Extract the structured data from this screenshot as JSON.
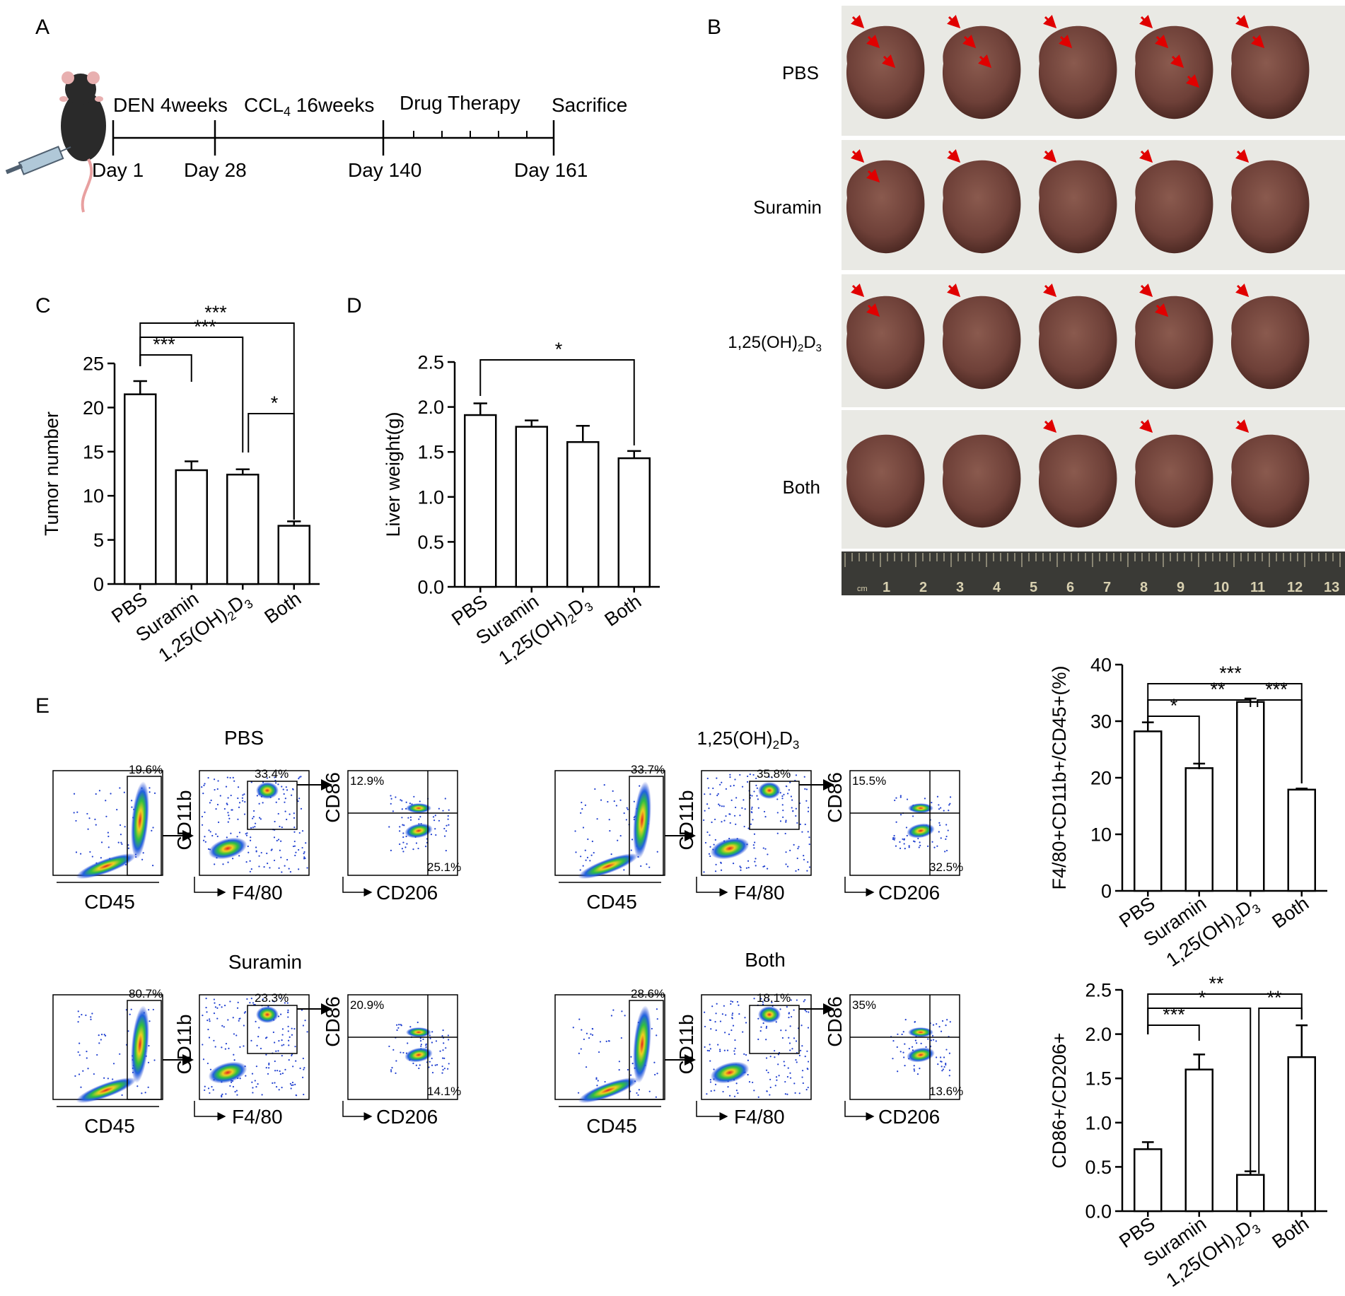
{
  "panel_labels": {
    "a": "A",
    "b": "B",
    "c": "C",
    "d": "D",
    "e": "E"
  },
  "timeline": {
    "phases": [
      "DEN 4weeks",
      "CCL",
      "4",
      " 16weeks",
      "Drug Therapy",
      "Sacrifice"
    ],
    "days": [
      "Day 1",
      "Day 28",
      "Day 140",
      "Day 161"
    ]
  },
  "photos": {
    "groups": [
      "PBS",
      "Suramin",
      "1,25(OH)2D3",
      "Both"
    ],
    "ruler_unit": "cm",
    "ruler_numbers": [
      "1",
      "2",
      "3",
      "4",
      "5",
      "6",
      "7",
      "8",
      "9",
      "10",
      "11",
      "12",
      "13"
    ]
  },
  "group_labels": {
    "pbs": "PBS",
    "suramin": "Suramin",
    "vitd_pre": "1,25(OH)",
    "vitd_sub1": "2",
    "vitd_mid": "D",
    "vitd_sub2": "3",
    "both": "Both"
  },
  "flow": {
    "axes": {
      "cd45": "CD45",
      "cd11b": "CD11b",
      "f480": "F4/80",
      "cd86": "CD86",
      "cd206": "CD206"
    },
    "panels": [
      {
        "group": "PBS",
        "cd45_gate": "19.6%",
        "cd11b_gate": "33.4%",
        "cd86_top": "12.9%",
        "cd206_bottom": "25.1%"
      },
      {
        "group": "1,25(OH)2D3",
        "cd45_gate": "33.7%",
        "cd11b_gate": "35.8%",
        "cd86_top": "15.5%",
        "cd206_bottom": "32.5%"
      },
      {
        "group": "Suramin",
        "cd45_gate": "80.7%",
        "cd11b_gate": "23.3%",
        "cd86_top": "20.9%",
        "cd206_bottom": "14.1%"
      },
      {
        "group": "Both",
        "cd45_gate": "28.6%",
        "cd11b_gate": "18.1%",
        "cd86_top": "35%",
        "cd206_bottom": "13.6%"
      }
    ]
  },
  "chart_data": [
    {
      "id": "C",
      "type": "bar",
      "categories": [
        "PBS",
        "Suramin",
        "1,25(OH)2D3",
        "Both"
      ],
      "values": [
        21.5,
        12.9,
        12.4,
        6.6
      ],
      "errors": [
        1.5,
        1.0,
        0.6,
        0.5
      ],
      "ylabel": "Tumor number",
      "ylim": [
        0,
        25
      ],
      "yticks": [
        "0",
        "5",
        "10",
        "15",
        "20",
        "25"
      ],
      "significance": [
        {
          "from": 0,
          "to": 1,
          "label": "***"
        },
        {
          "from": 0,
          "to": 2,
          "label": "***"
        },
        {
          "from": 0,
          "to": 3,
          "label": "***"
        },
        {
          "from": 2,
          "to": 3,
          "label": "*"
        }
      ]
    },
    {
      "id": "D",
      "type": "bar",
      "categories": [
        "PBS",
        "Suramin",
        "1,25(OH)2D3",
        "Both"
      ],
      "values": [
        1.91,
        1.78,
        1.61,
        1.43
      ],
      "errors": [
        0.13,
        0.07,
        0.18,
        0.08
      ],
      "ylabel": "Liver weight(g)",
      "ylim": [
        0,
        2.5
      ],
      "yticks": [
        "0.0",
        "0.5",
        "1.0",
        "1.5",
        "2.0",
        "2.5"
      ],
      "significance": [
        {
          "from": 0,
          "to": 3,
          "label": "*"
        }
      ]
    },
    {
      "id": "E1",
      "type": "bar",
      "categories": [
        "PBS",
        "Suramin",
        "1,25(OH)2D3",
        "Both"
      ],
      "values": [
        28.2,
        21.7,
        33.4,
        17.9
      ],
      "errors": [
        1.6,
        0.8,
        0.6,
        0.2
      ],
      "ylabel": "F4/80+CD11b+/CD45+(%)",
      "ylim": [
        0,
        40
      ],
      "yticks": [
        "0",
        "10",
        "20",
        "30",
        "40"
      ],
      "significance": [
        {
          "from": 0,
          "to": 1,
          "label": "*"
        },
        {
          "from": 0,
          "to": 2,
          "label": "**"
        },
        {
          "from": 0,
          "to": 3,
          "label": "***"
        },
        {
          "from": 2,
          "to": 3,
          "label": "***"
        }
      ]
    },
    {
      "id": "E2",
      "type": "bar",
      "categories": [
        "PBS",
        "Suramin",
        "1,25(OH)2D3",
        "Both"
      ],
      "values": [
        0.7,
        1.6,
        0.41,
        1.74
      ],
      "errors": [
        0.08,
        0.17,
        0.04,
        0.36
      ],
      "ylabel": "CD86+/CD206+",
      "ylim": [
        0,
        2.5
      ],
      "yticks": [
        "0.0",
        "0.5",
        "1.0",
        "1.5",
        "2.0",
        "2.5"
      ],
      "significance": [
        {
          "from": 0,
          "to": 1,
          "label": "***"
        },
        {
          "from": 0,
          "to": 2,
          "label": "*"
        },
        {
          "from": 0,
          "to": 3,
          "label": "**"
        },
        {
          "from": 2,
          "to": 3,
          "label": "**"
        }
      ]
    }
  ]
}
